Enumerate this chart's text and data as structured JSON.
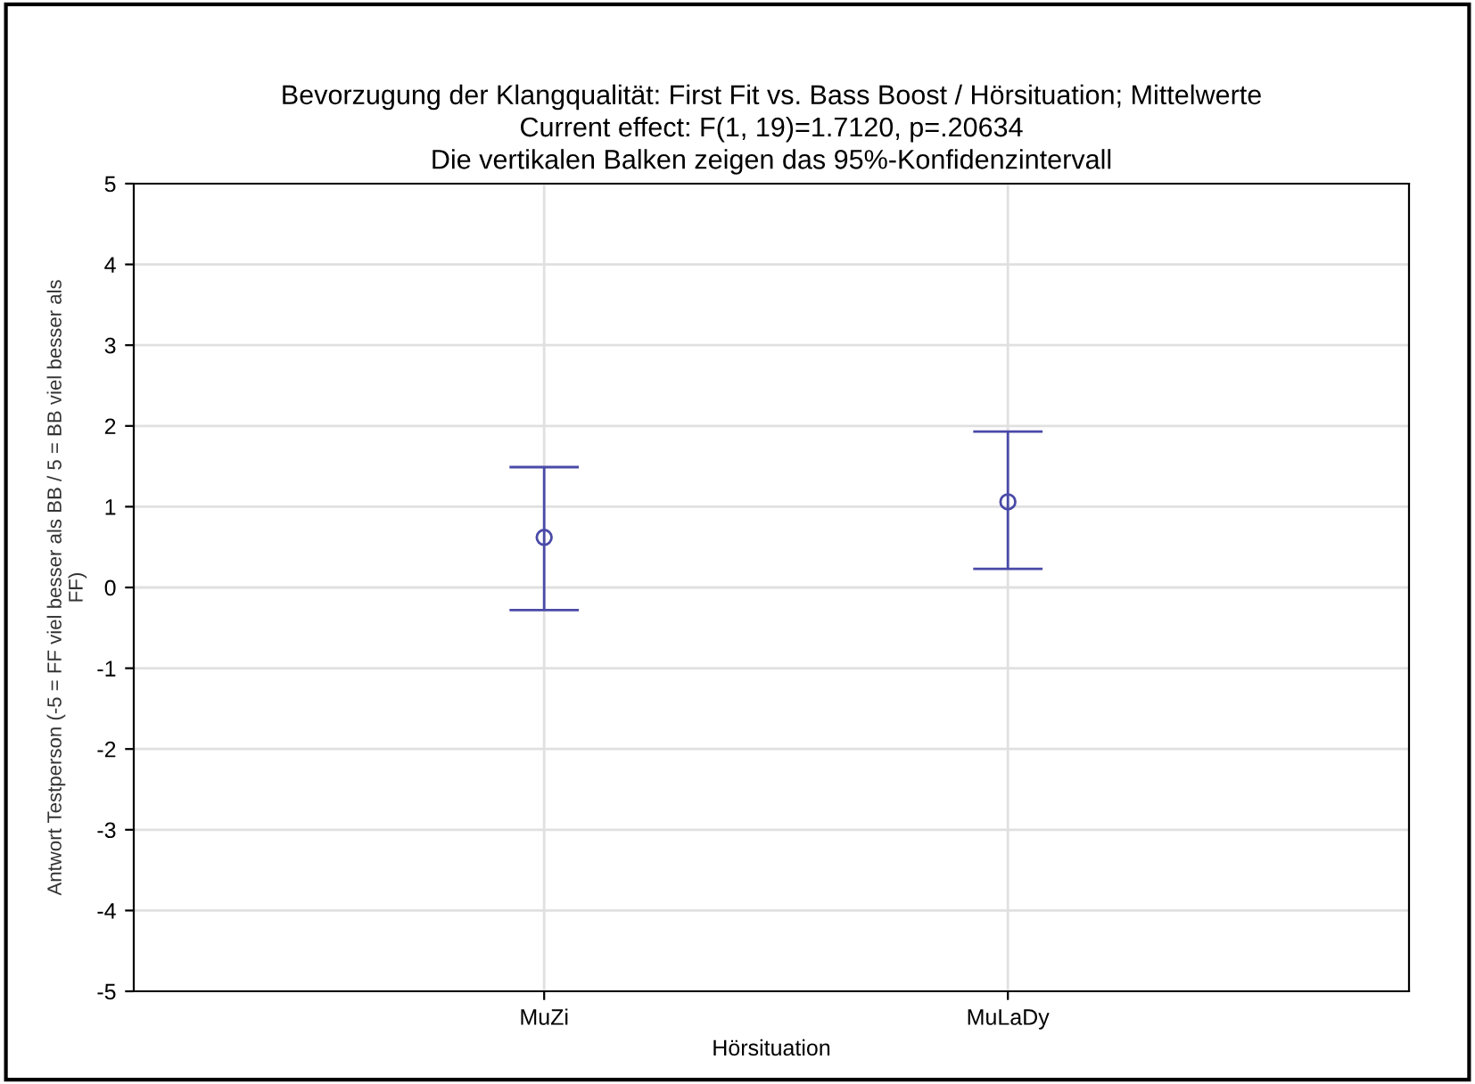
{
  "chart_data": {
    "type": "scatter",
    "title": "Bevorzugung der Klangqualität: First Fit vs. Bass Boost / Hörsituation; Mittelwerte\nCurrent effect: F(1, 19)=1.7120, p=.20634\nDie vertikalen Balken zeigen das 95%-Konfidenzintervall",
    "xlabel": "Hörsituation",
    "ylabel": "Antwort Testperson (-5 = FF viel besser als BB / 5 = BB viel besser als\nFF)",
    "categories": [
      "MuZi",
      "MuLaDy"
    ],
    "series": [
      {
        "color": "#4a4aa8",
        "values": [
          0.62,
          1.06
        ],
        "errors": [
          [
            -0.28,
            1.49
          ],
          [
            0.23,
            1.93
          ]
        ]
      }
    ],
    "ylim": [
      -5,
      5
    ],
    "yticks": [
      -5,
      -4,
      -3,
      -2,
      -1,
      0,
      1,
      2,
      3,
      4,
      5
    ],
    "grid": true,
    "marker": "circle"
  }
}
